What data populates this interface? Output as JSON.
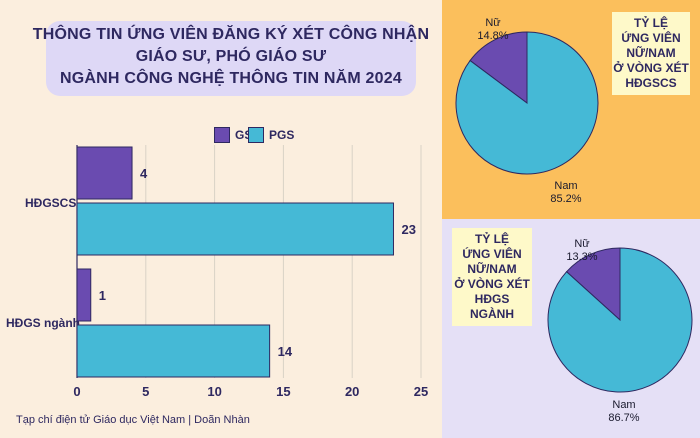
{
  "title": {
    "line1": "THÔNG TIN ỨNG VIÊN ĐĂNG KÝ XÉT CÔNG NHẬN",
    "line2": "GIÁO SƯ, PHÓ GIÁO SƯ",
    "line3": "NGÀNH CÔNG NGHỆ THÔNG TIN NĂM 2024"
  },
  "source": "Tạp chí điện tử Giáo dục Việt Nam | Doãn Nhàn",
  "colors": {
    "gs": "#6a4bb0",
    "pgs": "#45b9d6",
    "text": "#2e2860"
  },
  "chart_data": [
    {
      "type": "bar",
      "orientation": "horizontal",
      "categories": [
        "HĐGSCS",
        "HĐGS ngành"
      ],
      "series": [
        {
          "name": "GS",
          "values": [
            4,
            1
          ],
          "color": "#6a4bb0"
        },
        {
          "name": "PGS",
          "values": [
            23,
            14
          ],
          "color": "#45b9d6"
        }
      ],
      "xlim": [
        0,
        25
      ],
      "xticks": [
        0,
        5,
        10,
        15,
        20,
        25
      ],
      "grid": true,
      "legend_position": "top"
    },
    {
      "type": "pie",
      "title": "TỶ LỆ ỨNG VIÊN NỮ/NAM Ở VÒNG XÉT HĐGSCS",
      "title_lines": [
        "TỶ LỆ",
        "ỨNG VIÊN",
        "NỮ/NAM",
        "Ở VÒNG XÉT",
        "HĐGSCS"
      ],
      "slices": [
        {
          "label": "Nữ",
          "value": 14.8,
          "display": "14.8%",
          "color": "#6a4bb0"
        },
        {
          "label": "Nam",
          "value": 85.2,
          "display": "85.2%",
          "color": "#45b9d6"
        }
      ]
    },
    {
      "type": "pie",
      "title": "TỶ LỆ ỨNG VIÊN NỮ/NAM Ở VÒNG XÉT HĐGS NGÀNH",
      "title_lines": [
        "TỶ LỆ",
        "ỨNG VIÊN",
        "NỮ/NAM",
        "Ở VÒNG XÉT",
        "HĐGS NGÀNH"
      ],
      "slices": [
        {
          "label": "Nữ",
          "value": 13.3,
          "display": "13.3%",
          "color": "#6a4bb0"
        },
        {
          "label": "Nam",
          "value": 86.7,
          "display": "86.7%",
          "color": "#45b9d6"
        }
      ]
    }
  ]
}
